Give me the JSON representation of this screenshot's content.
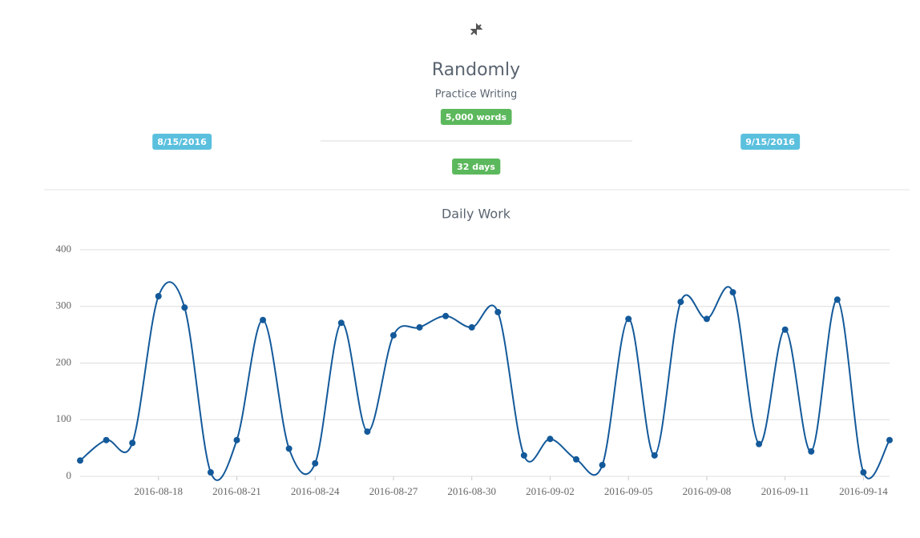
{
  "header": {
    "title": "Randomly",
    "subtitle": "Practice Writing",
    "goal": "5,000 words",
    "start_date": "8/15/2016",
    "end_date": "9/15/2016",
    "duration": "32 days"
  },
  "chart_data": {
    "type": "line",
    "title": "Daily Work",
    "x": [
      "2016-08-15",
      "2016-08-16",
      "2016-08-17",
      "2016-08-18",
      "2016-08-19",
      "2016-08-20",
      "2016-08-21",
      "2016-08-22",
      "2016-08-23",
      "2016-08-24",
      "2016-08-25",
      "2016-08-26",
      "2016-08-27",
      "2016-08-28",
      "2016-08-29",
      "2016-08-30",
      "2016-08-31",
      "2016-09-01",
      "2016-09-02",
      "2016-09-03",
      "2016-09-04",
      "2016-09-05",
      "2016-09-06",
      "2016-09-07",
      "2016-09-08",
      "2016-09-09",
      "2016-09-10",
      "2016-09-11",
      "2016-09-12",
      "2016-09-13",
      "2016-09-14",
      "2016-09-15"
    ],
    "series": [
      {
        "color": "#13599a",
        "values": [
          28,
          64,
          59,
          318,
          298,
          7,
          64,
          276,
          49,
          23,
          271,
          79,
          249,
          263,
          283,
          263,
          290,
          37,
          66,
          30,
          20,
          278,
          37,
          308,
          278,
          325,
          57,
          259,
          44,
          312,
          7,
          64
        ]
      }
    ],
    "xlim": [
      "2016-08-15",
      "2016-09-15"
    ],
    "xticks": [
      "2016-08-18",
      "2016-08-21",
      "2016-08-24",
      "2016-08-27",
      "2016-08-30",
      "2016-09-02",
      "2016-09-05",
      "2016-09-08",
      "2016-09-11",
      "2016-09-14"
    ],
    "ylim": [
      0,
      400
    ],
    "yticks": [
      0,
      100,
      200,
      300,
      400
    ],
    "grid": true
  }
}
